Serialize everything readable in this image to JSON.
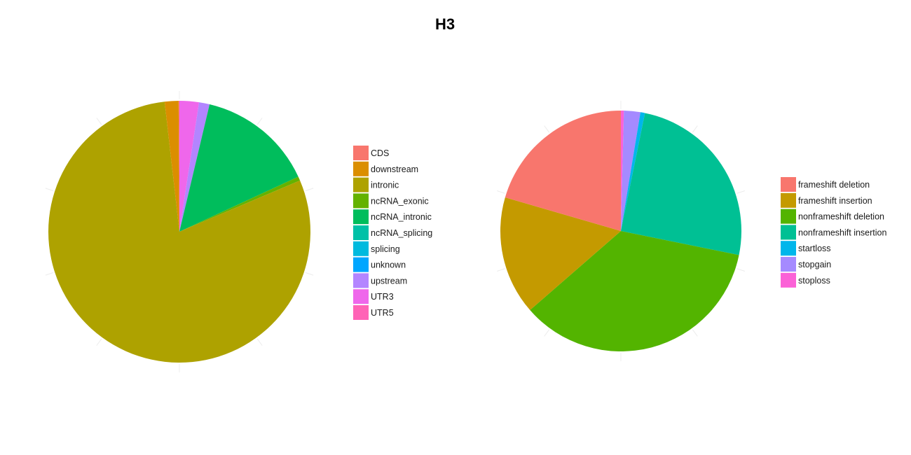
{
  "title": "H3",
  "chart_data": [
    {
      "type": "pie",
      "title": "",
      "categories": [
        "CDS",
        "downstream",
        "intronic",
        "ncRNA_exonic",
        "ncRNA_intronic",
        "ncRNA_splicing",
        "splicing",
        "unknown",
        "upstream",
        "UTR3",
        "UTR5"
      ],
      "values": [
        0.1,
        1.7,
        79.6,
        0.5,
        14.4,
        0.0,
        0.0,
        0.0,
        1.3,
        2.4,
        0.0
      ],
      "colors": [
        "#F8766D",
        "#DB8E00",
        "#AEA200",
        "#64B200",
        "#00BD5C",
        "#00C1A7",
        "#00BADE",
        "#00A6FF",
        "#B385FF",
        "#EF67EB",
        "#FF63B6"
      ],
      "legend_position": "right"
    },
    {
      "type": "pie",
      "title": "",
      "categories": [
        "frameshift deletion",
        "frameshift insertion",
        "nonframeshift deletion",
        "nonframeshift insertion",
        "startloss",
        "stopgain",
        "stoploss"
      ],
      "values": [
        20.5,
        15.9,
        35.4,
        25.0,
        0.6,
        2.2,
        0.4
      ],
      "colors": [
        "#F8766D",
        "#C49A00",
        "#53B400",
        "#00C094",
        "#00B6EB",
        "#A58AFF",
        "#FB61D7"
      ],
      "legend_position": "right"
    }
  ]
}
